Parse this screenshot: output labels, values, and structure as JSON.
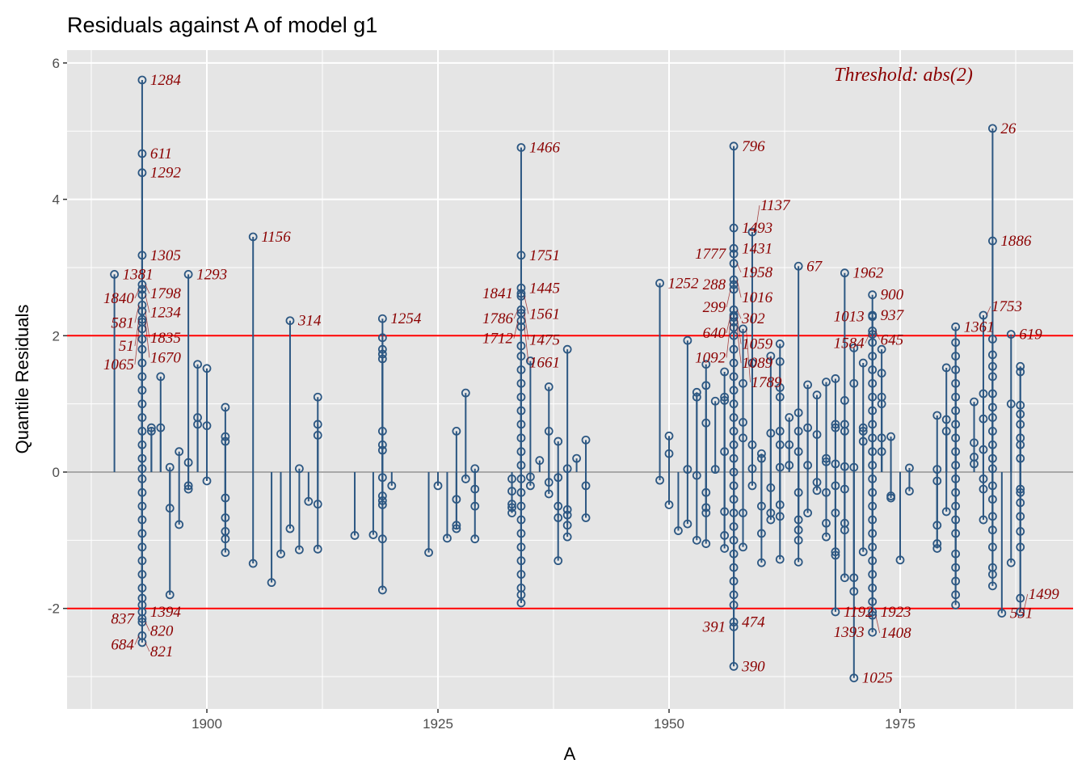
{
  "chart_data": {
    "type": "scatter",
    "title": "Residuals against A of model g1",
    "xlabel": "A",
    "ylabel": "Quantile Residuals",
    "xlim": [
      1885,
      1991
    ],
    "ylim": [
      -3.5,
      6.3
    ],
    "xticks": [
      1900,
      1925,
      1950,
      1975
    ],
    "yticks": [
      -2,
      0,
      2,
      4,
      6
    ],
    "grid": true,
    "threshold": 2,
    "annotation": "Threshold: abs(2)",
    "colors": {
      "point": "#2c5782",
      "label": "#8b0000",
      "threshold": "#ff0000",
      "zero": "#a8a8a8",
      "panel": "#e5e5e5"
    },
    "labeled_points": [
      {
        "x": 1893,
        "y": 5.75,
        "label": "1284"
      },
      {
        "x": 1893,
        "y": 4.67,
        "label": "611"
      },
      {
        "x": 1893,
        "y": 4.39,
        "label": "1292"
      },
      {
        "x": 1893,
        "y": 3.18,
        "label": "1305"
      },
      {
        "x": 1893,
        "y": 2.75,
        "label": "1798"
      },
      {
        "x": 1893,
        "y": 2.68,
        "label": "1840"
      },
      {
        "x": 1893,
        "y": 2.6,
        "label": "1234"
      },
      {
        "x": 1893,
        "y": 2.45,
        "label": "581"
      },
      {
        "x": 1893,
        "y": 2.36,
        "label": "1835"
      },
      {
        "x": 1893,
        "y": 2.24,
        "label": "51"
      },
      {
        "x": 1893,
        "y": 2.2,
        "label": "1670"
      },
      {
        "x": 1893,
        "y": 2.1,
        "label": "1065"
      },
      {
        "x": 1893,
        "y": -2.05,
        "label": "1394"
      },
      {
        "x": 1893,
        "y": -2.15,
        "label": "837"
      },
      {
        "x": 1893,
        "y": -2.2,
        "label": "820"
      },
      {
        "x": 1893,
        "y": -2.4,
        "label": "684"
      },
      {
        "x": 1893,
        "y": -2.5,
        "label": "821"
      },
      {
        "x": 1890,
        "y": 2.9,
        "label": "1381"
      },
      {
        "x": 1898,
        "y": 2.9,
        "label": "1293"
      },
      {
        "x": 1905,
        "y": 3.45,
        "label": "1156"
      },
      {
        "x": 1909,
        "y": 2.22,
        "label": "314"
      },
      {
        "x": 1919,
        "y": 2.25,
        "label": "1254"
      },
      {
        "x": 1934,
        "y": 4.76,
        "label": "1466"
      },
      {
        "x": 1934,
        "y": 3.18,
        "label": "1751"
      },
      {
        "x": 1934,
        "y": 2.7,
        "label": "1445"
      },
      {
        "x": 1934,
        "y": 2.62,
        "label": "1841"
      },
      {
        "x": 1934,
        "y": 2.58,
        "label": "1561"
      },
      {
        "x": 1934,
        "y": 2.38,
        "label": "1786"
      },
      {
        "x": 1934,
        "y": 2.33,
        "label": "1475"
      },
      {
        "x": 1934,
        "y": 2.22,
        "label": "1712"
      },
      {
        "x": 1934,
        "y": 2.13,
        "label": "1661"
      },
      {
        "x": 1949,
        "y": 2.77,
        "label": "1252"
      },
      {
        "x": 1957,
        "y": 4.78,
        "label": "796"
      },
      {
        "x": 1957,
        "y": 3.58,
        "label": "1493"
      },
      {
        "x": 1957,
        "y": 3.28,
        "label": "1431"
      },
      {
        "x": 1957,
        "y": 3.2,
        "label": "1777"
      },
      {
        "x": 1957,
        "y": 3.06,
        "label": "1958"
      },
      {
        "x": 1957,
        "y": 2.82,
        "label": "1016"
      },
      {
        "x": 1957,
        "y": 2.75,
        "label": "288"
      },
      {
        "x": 1957,
        "y": 2.68,
        "label": "299"
      },
      {
        "x": 1957,
        "y": 2.38,
        "label": "302"
      },
      {
        "x": 1957,
        "y": 2.3,
        "label": "640"
      },
      {
        "x": 1957,
        "y": 2.27,
        "label": "1059"
      },
      {
        "x": 1957,
        "y": 2.2,
        "label": "1092"
      },
      {
        "x": 1957,
        "y": 2.12,
        "label": "1089"
      },
      {
        "x": 1957,
        "y": -2.2,
        "label": "474"
      },
      {
        "x": 1957,
        "y": -2.27,
        "label": "391"
      },
      {
        "x": 1957,
        "y": -2.85,
        "label": "390"
      },
      {
        "x": 1959,
        "y": 3.52,
        "label": "1137"
      },
      {
        "x": 1958,
        "y": 2.1,
        "label": "1789"
      },
      {
        "x": 1964,
        "y": 3.02,
        "label": "67"
      },
      {
        "x": 1969,
        "y": 2.92,
        "label": "1962"
      },
      {
        "x": 1972,
        "y": 2.6,
        "label": "900"
      },
      {
        "x": 1972,
        "y": 2.3,
        "label": "937"
      },
      {
        "x": 1972,
        "y": 2.28,
        "label": "1013"
      },
      {
        "x": 1972,
        "y": 2.07,
        "label": "645"
      },
      {
        "x": 1972,
        "y": 2.02,
        "label": "1584"
      },
      {
        "x": 1968,
        "y": -2.05,
        "label": "1192"
      },
      {
        "x": 1972,
        "y": -2.05,
        "label": "1923"
      },
      {
        "x": 1972,
        "y": -2.1,
        "label": "1408"
      },
      {
        "x": 1972,
        "y": -2.35,
        "label": "1393"
      },
      {
        "x": 1970,
        "y": -3.02,
        "label": "1025"
      },
      {
        "x": 1981,
        "y": 2.13,
        "label": "1361"
      },
      {
        "x": 1984,
        "y": 2.3,
        "label": "1753"
      },
      {
        "x": 1985,
        "y": 5.04,
        "label": "26"
      },
      {
        "x": 1985,
        "y": 3.39,
        "label": "1886"
      },
      {
        "x": 1987,
        "y": 2.02,
        "label": "619"
      },
      {
        "x": 1986,
        "y": -2.07,
        "label": "551"
      },
      {
        "x": 1988,
        "y": -2.05,
        "label": "1499"
      }
    ],
    "points": [
      {
        "x": 1893,
        "y": [
          1.95,
          1.8,
          1.6,
          1.4,
          1.2,
          1.0,
          0.8,
          0.6,
          0.4,
          0.2,
          0.05,
          -0.1,
          -0.3,
          -0.5,
          -0.7,
          -0.9,
          -1.1,
          -1.3,
          -1.5,
          -1.7,
          -1.85,
          -1.95
        ]
      },
      {
        "x": 1894,
        "y": [
          0.65,
          0.6
        ]
      },
      {
        "x": 1895,
        "y": [
          1.4,
          0.65
        ]
      },
      {
        "x": 1896,
        "y": [
          0.07,
          -0.53,
          -1.8
        ]
      },
      {
        "x": 1897,
        "y": [
          0.3,
          -0.77
        ]
      },
      {
        "x": 1898,
        "y": [
          0.14,
          -0.2,
          -0.25
        ]
      },
      {
        "x": 1899,
        "y": [
          1.58,
          0.8,
          0.7
        ]
      },
      {
        "x": 1900,
        "y": [
          1.52,
          0.68,
          -0.13
        ]
      },
      {
        "x": 1902,
        "y": [
          0.95,
          0.52,
          0.45,
          -0.38,
          -0.67,
          -0.87,
          -0.98,
          -1.18
        ]
      },
      {
        "x": 1905,
        "y": [
          -1.34
        ]
      },
      {
        "x": 1907,
        "y": [
          -1.62
        ]
      },
      {
        "x": 1908,
        "y": [
          -1.2
        ]
      },
      {
        "x": 1909,
        "y": [
          -0.83
        ]
      },
      {
        "x": 1910,
        "y": [
          0.05,
          -1.14
        ]
      },
      {
        "x": 1911,
        "y": [
          -0.43
        ]
      },
      {
        "x": 1912,
        "y": [
          1.1,
          0.7,
          0.54,
          -0.47,
          -1.13
        ]
      },
      {
        "x": 1916,
        "y": [
          -0.93
        ]
      },
      {
        "x": 1918,
        "y": [
          -0.92
        ]
      },
      {
        "x": 1919,
        "y": [
          1.97,
          1.8,
          1.73,
          1.66,
          0.6,
          0.4,
          0.32,
          -0.08,
          -0.35,
          -0.42,
          -0.48,
          -0.98,
          -1.73
        ]
      },
      {
        "x": 1920,
        "y": [
          -0.2
        ]
      },
      {
        "x": 1924,
        "y": [
          -1.18
        ]
      },
      {
        "x": 1925,
        "y": [
          -0.2
        ]
      },
      {
        "x": 1926,
        "y": [
          -0.97
        ]
      },
      {
        "x": 1927,
        "y": [
          0.6,
          -0.4,
          -0.78,
          -0.83
        ]
      },
      {
        "x": 1928,
        "y": [
          1.16,
          -0.1
        ]
      },
      {
        "x": 1929,
        "y": [
          0.05,
          -0.25,
          -0.5,
          -0.98
        ]
      },
      {
        "x": 1933,
        "y": [
          -0.1,
          -0.28,
          -0.47,
          -0.52,
          -0.6
        ]
      },
      {
        "x": 1934,
        "y": [
          1.85,
          1.7,
          1.5,
          1.3,
          1.1,
          0.9,
          0.7,
          0.5,
          0.3,
          0.1,
          -0.1,
          -0.3,
          -0.5,
          -0.7,
          -0.9,
          -1.1,
          -1.3,
          -1.5,
          -1.7,
          -1.8,
          -1.92
        ]
      },
      {
        "x": 1935,
        "y": [
          1.63,
          -0.07,
          -0.2
        ]
      },
      {
        "x": 1936,
        "y": [
          0.17
        ]
      },
      {
        "x": 1937,
        "y": [
          1.25,
          0.6,
          -0.15,
          -0.32
        ]
      },
      {
        "x": 1938,
        "y": [
          0.45,
          -0.08,
          -0.5,
          -0.67,
          -1.3
        ]
      },
      {
        "x": 1939,
        "y": [
          1.8,
          0.05,
          -0.55,
          -0.63,
          -0.78,
          -0.95
        ]
      },
      {
        "x": 1940,
        "y": [
          0.2
        ]
      },
      {
        "x": 1941,
        "y": [
          0.47,
          -0.2,
          -0.67
        ]
      },
      {
        "x": 1949,
        "y": [
          -0.12
        ]
      },
      {
        "x": 1950,
        "y": [
          0.53,
          0.27,
          -0.48
        ]
      },
      {
        "x": 1951,
        "y": [
          -0.86
        ]
      },
      {
        "x": 1952,
        "y": [
          1.93,
          0.04,
          -0.76
        ]
      },
      {
        "x": 1953,
        "y": [
          1.17,
          1.1,
          -0.05,
          -1.0
        ]
      },
      {
        "x": 1954,
        "y": [
          1.58,
          1.27,
          0.72,
          -0.3,
          -0.52,
          -0.6,
          -1.05
        ]
      },
      {
        "x": 1955,
        "y": [
          1.04,
          0.04
        ]
      },
      {
        "x": 1956,
        "y": [
          1.47,
          1.1,
          1.05,
          0.3,
          -0.58,
          -0.93,
          -1.12
        ]
      },
      {
        "x": 1957,
        "y": [
          2.0,
          1.8,
          1.6,
          1.4,
          1.2,
          1.0,
          0.8,
          0.6,
          0.4,
          0.2,
          0.0,
          -0.2,
          -0.4,
          -0.6,
          -0.8,
          -1.0,
          -1.2,
          -1.4,
          -1.6,
          -1.8,
          -1.95
        ]
      },
      {
        "x": 1958,
        "y": [
          1.3,
          0.73,
          0.5,
          -0.6,
          -1.1
        ]
      },
      {
        "x": 1959,
        "y": [
          1.6,
          0.4,
          0.05,
          -0.2
        ]
      },
      {
        "x": 1960,
        "y": [
          0.27,
          0.2,
          -0.5,
          -0.9,
          -1.33
        ]
      },
      {
        "x": 1961,
        "y": [
          1.7,
          0.57,
          -0.23,
          -0.6,
          -0.7
        ]
      },
      {
        "x": 1962,
        "y": [
          1.88,
          1.62,
          1.24,
          1.1,
          0.6,
          0.4,
          0.07,
          -0.48,
          -0.65,
          -1.28
        ]
      },
      {
        "x": 1963,
        "y": [
          0.8,
          0.4,
          0.1
        ]
      },
      {
        "x": 1964,
        "y": [
          0.87,
          0.6,
          0.3,
          -0.3,
          -0.7,
          -0.85,
          -1.0,
          -1.32
        ]
      },
      {
        "x": 1965,
        "y": [
          1.28,
          0.65,
          0.1,
          -0.6
        ]
      },
      {
        "x": 1966,
        "y": [
          1.13,
          0.55,
          -0.15,
          -0.27
        ]
      },
      {
        "x": 1967,
        "y": [
          1.32,
          0.2,
          0.15,
          -0.3,
          -0.75,
          -0.95
        ]
      },
      {
        "x": 1968,
        "y": [
          1.37,
          0.7,
          0.65,
          0.12,
          -0.2,
          -0.6,
          -1.17,
          -1.22
        ]
      },
      {
        "x": 1969,
        "y": [
          1.05,
          0.7,
          0.6,
          0.08,
          -0.25,
          -0.75,
          -0.85,
          -1.55
        ]
      },
      {
        "x": 1970,
        "y": [
          1.82,
          1.3,
          0.07,
          -1.55,
          -1.75
        ]
      },
      {
        "x": 1971,
        "y": [
          1.6,
          0.65,
          0.6,
          0.45,
          -1.17
        ]
      },
      {
        "x": 1972,
        "y": [
          1.9,
          1.7,
          1.5,
          1.3,
          1.1,
          0.9,
          0.7,
          0.5,
          0.3,
          0.1,
          -0.1,
          -0.3,
          -0.5,
          -0.7,
          -0.9,
          -1.1,
          -1.3,
          -1.5,
          -1.7,
          -1.9
        ]
      },
      {
        "x": 1973,
        "y": [
          1.8,
          1.45,
          1.1,
          1.0,
          0.5,
          0.3
        ]
      },
      {
        "x": 1974,
        "y": [
          0.52,
          -0.35,
          -0.38
        ]
      },
      {
        "x": 1975,
        "y": [
          -1.29
        ]
      },
      {
        "x": 1976,
        "y": [
          0.06,
          -0.28
        ]
      },
      {
        "x": 1979,
        "y": [
          0.83,
          0.04,
          -0.13,
          -0.78,
          -1.05,
          -1.12
        ]
      },
      {
        "x": 1980,
        "y": [
          1.53,
          0.77,
          0.6,
          -0.58
        ]
      },
      {
        "x": 1981,
        "y": [
          1.9,
          1.7,
          1.5,
          1.3,
          1.1,
          0.9,
          0.7,
          0.5,
          0.3,
          0.1,
          -0.1,
          -0.3,
          -0.5,
          -0.7,
          -0.9,
          -1.2,
          -1.4,
          -1.6,
          -1.8,
          -1.95
        ]
      },
      {
        "x": 1983,
        "y": [
          1.03,
          0.43,
          0.22,
          0.12
        ]
      },
      {
        "x": 1984,
        "y": [
          1.15,
          0.78,
          0.33,
          -0.1,
          -0.25,
          -0.7
        ]
      },
      {
        "x": 1985,
        "y": [
          1.95,
          1.72,
          1.55,
          1.4,
          1.15,
          0.95,
          0.8,
          0.6,
          0.4,
          0.2,
          0.05,
          -0.2,
          -0.4,
          -0.65,
          -0.85,
          -1.1,
          -1.4,
          -1.5,
          -1.67
        ]
      },
      {
        "x": 1987,
        "y": [
          1.0,
          -1.33
        ]
      },
      {
        "x": 1988,
        "y": [
          1.55,
          1.47,
          0.98,
          0.85,
          0.7,
          0.5,
          0.4,
          0.2,
          -0.25,
          -0.3,
          -0.45,
          -0.65,
          -0.87,
          -1.1,
          -1.85
        ]
      }
    ]
  }
}
